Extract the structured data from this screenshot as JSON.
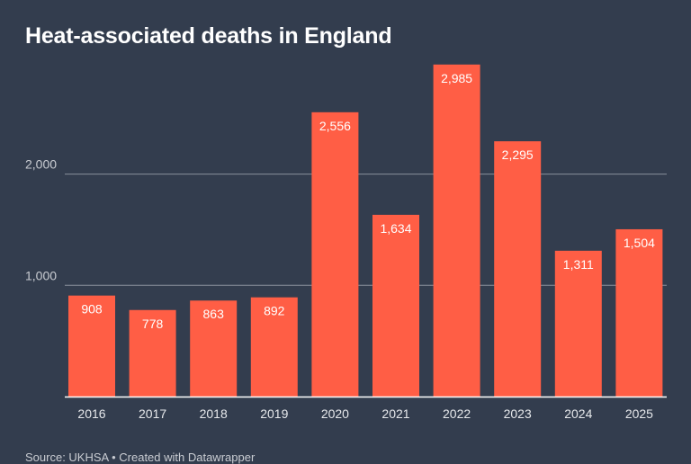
{
  "title": "Heat-associated deaths in England",
  "source": "Source: UKHSA • Created with Datawrapper",
  "colors": {
    "background": "#333d4e",
    "bar": "#ff5e45",
    "grid": "#8a909b",
    "axis": "#ffffff"
  },
  "chart_data": {
    "type": "bar",
    "title": "Heat-associated deaths in England",
    "xlabel": "",
    "ylabel": "",
    "categories": [
      "2016",
      "2017",
      "2018",
      "2019",
      "2020",
      "2021",
      "2022",
      "2023",
      "2024",
      "2025"
    ],
    "values": [
      908,
      778,
      863,
      892,
      2556,
      1634,
      2985,
      2295,
      1311,
      1504
    ],
    "value_labels": [
      "908",
      "778",
      "863",
      "892",
      "2,556",
      "1,634",
      "2,985",
      "2,295",
      "1,311",
      "1,504"
    ],
    "yticks": [
      1000,
      2000
    ],
    "ytick_labels": [
      "1,000",
      "2,000"
    ],
    "ylim": [
      0,
      3000
    ],
    "grid": true,
    "legend": "none"
  }
}
